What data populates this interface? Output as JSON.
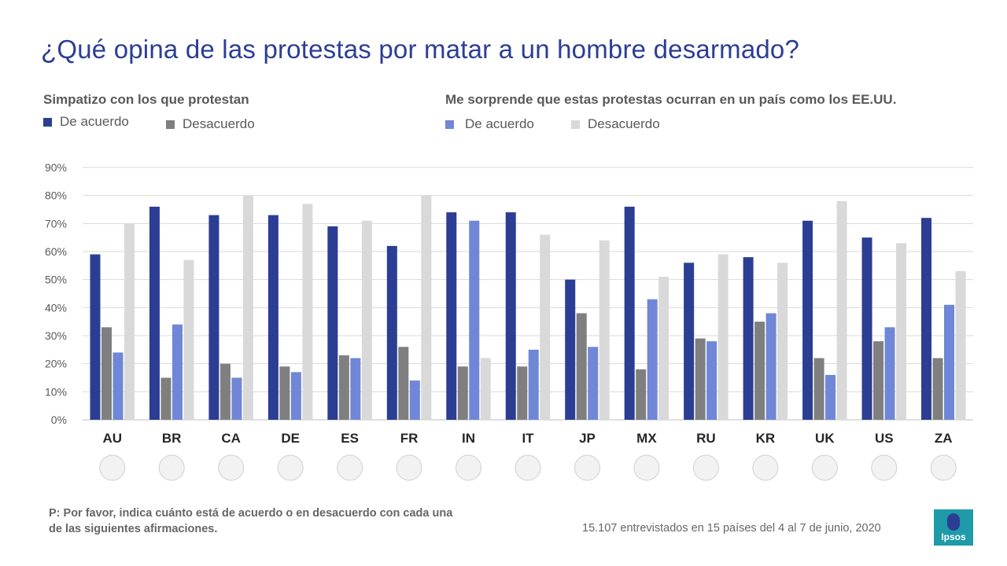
{
  "title": "¿Qué opina de las protestas por matar a un hombre desarmado?",
  "groups": [
    {
      "title": "Simpatizo con los que protestan",
      "agree": "De acuerdo",
      "disagree": "Desacuerdo"
    },
    {
      "title": "Me sorprende que estas protestas ocurran en un país como los EE.UU.",
      "agree": "De acuerdo",
      "disagree": "Desacuerdo"
    }
  ],
  "colors": {
    "s1": "#2B3E94",
    "s2": "#7F7F7F",
    "s3": "#6F87D6",
    "s4": "#D9D9D9",
    "grid": "#D9D9D9",
    "axis": "#595959"
  },
  "chart_data": {
    "type": "bar",
    "categories": [
      "AU",
      "BR",
      "CA",
      "DE",
      "ES",
      "FR",
      "IN",
      "IT",
      "JP",
      "MX",
      "RU",
      "KR",
      "UK",
      "US",
      "ZA"
    ],
    "series": [
      {
        "name": "Simpatizo - De acuerdo",
        "values": [
          59,
          76,
          73,
          73,
          69,
          62,
          74,
          74,
          50,
          76,
          56,
          58,
          71,
          65,
          72
        ]
      },
      {
        "name": "Simpatizo - Desacuerdo",
        "values": [
          33,
          15,
          20,
          19,
          23,
          26,
          19,
          19,
          38,
          18,
          29,
          35,
          22,
          28,
          22
        ]
      },
      {
        "name": "Sorprende - De acuerdo",
        "values": [
          24,
          34,
          15,
          17,
          22,
          14,
          71,
          25,
          26,
          43,
          28,
          38,
          16,
          33,
          41
        ]
      },
      {
        "name": "Sorprende - Desacuerdo",
        "values": [
          70,
          57,
          80,
          77,
          71,
          80,
          22,
          66,
          64,
          51,
          59,
          56,
          78,
          63,
          53
        ]
      }
    ],
    "yticks": [
      "0%",
      "10%",
      "20%",
      "30%",
      "40%",
      "50%",
      "60%",
      "70%",
      "80%",
      "90%"
    ],
    "ylim": [
      0,
      90
    ],
    "title": "¿Qué opina de las protestas por matar a un hombre desarmado?",
    "xlabel": "",
    "ylabel": ""
  },
  "footnote": "P: Por favor, indica cuánto está de acuerdo o en desacuerdo con cada una de las siguientes afirmaciones.",
  "source": "15.107 entrevistados en 15 países del 4 al 7 de junio, 2020",
  "logo": "Ipsos"
}
